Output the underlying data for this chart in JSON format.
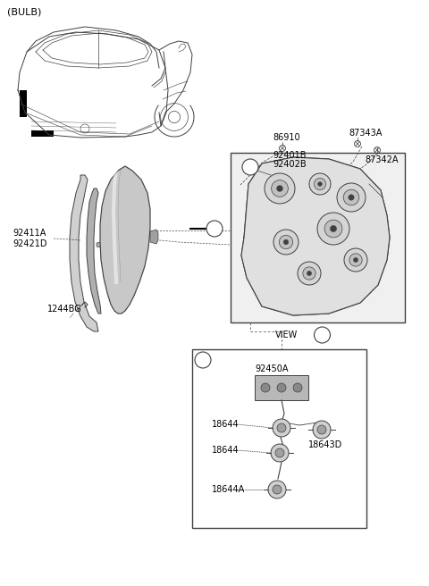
{
  "bg_color": "#ffffff",
  "line_color": "#404040",
  "text_color": "#000000",
  "labels": {
    "bulb": "(BULB)",
    "86910": "86910",
    "87343A": "87343A",
    "92401B": "92401B",
    "92402B": "92402B",
    "87342A": "87342A",
    "92411A": "92411A",
    "92421D": "92421D",
    "1244BG": "1244BG",
    "92450A": "92450A",
    "18644_1": "18644",
    "18644_2": "18644",
    "18644A": "18644A",
    "18643D": "18643D",
    "VIEW_A": "VIEW",
    "a_small": "a",
    "A_big": "A"
  },
  "car_color": "#e8e8e8",
  "panel_color_dark": "#b0b0b0",
  "panel_color_light": "#d0d0d0",
  "lamp_bg": "#e8e8e8"
}
